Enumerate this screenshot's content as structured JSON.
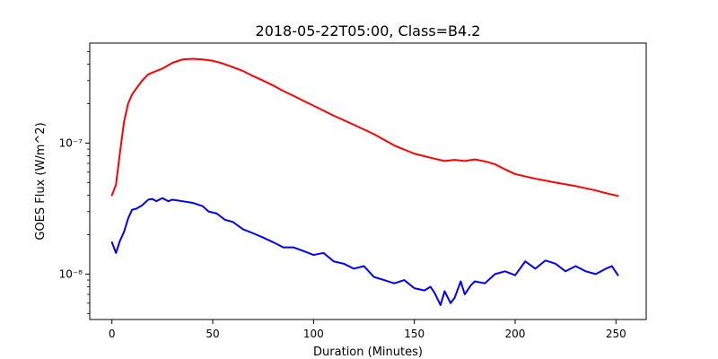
{
  "chart_data": {
    "type": "line",
    "title": "2018-05-22T05:00, Class=B4.2",
    "xlabel": "Duration (Minutes)",
    "ylabel": "GOES Flux (W/m^2)",
    "xlim": [
      -11,
      265
    ],
    "ylim": [
      4.5e-09,
      5.8e-07
    ],
    "yscale": "log",
    "grid": false,
    "xticks": [
      0,
      50,
      100,
      150,
      200,
      250
    ],
    "xtick_labels": [
      "0",
      "50",
      "100",
      "150",
      "200",
      "250"
    ],
    "yticks": [
      1e-08,
      1e-07
    ],
    "ytick_labels": [
      "10⁻⁸",
      "10⁻⁷"
    ],
    "series": [
      {
        "color": "#ff0000",
        "x": [
          0,
          2,
          4,
          6,
          8,
          10,
          12,
          15,
          18,
          20,
          25,
          30,
          35,
          40,
          45,
          50,
          55,
          60,
          65,
          70,
          75,
          80,
          85,
          90,
          95,
          100,
          110,
          120,
          130,
          140,
          150,
          160,
          165,
          170,
          175,
          180,
          185,
          190,
          195,
          200,
          210,
          220,
          230,
          240,
          245,
          251
        ],
        "y": [
          4e-08,
          4.8e-08,
          8.5e-08,
          1.45e-07,
          2e-07,
          2.35e-07,
          2.6e-07,
          3e-07,
          3.35e-07,
          3.45e-07,
          3.7e-07,
          4.1e-07,
          4.35e-07,
          4.4e-07,
          4.35e-07,
          4.25e-07,
          4.05e-07,
          3.8e-07,
          3.55e-07,
          3.25e-07,
          3e-07,
          2.75e-07,
          2.5e-07,
          2.3e-07,
          2.1e-07,
          1.93e-07,
          1.62e-07,
          1.38e-07,
          1.17e-07,
          9.6e-08,
          8.3e-08,
          7.6e-08,
          7.3e-08,
          7.45e-08,
          7.3e-08,
          7.5e-08,
          7.25e-08,
          6.9e-08,
          6.3e-08,
          5.8e-08,
          5.35e-08,
          5e-08,
          4.7e-08,
          4.35e-08,
          4.15e-08,
          3.95e-08
        ]
      },
      {
        "color": "#0000ff",
        "x": [
          0,
          2,
          4,
          6,
          8,
          10,
          12,
          15,
          18,
          20,
          22,
          25,
          28,
          30,
          35,
          40,
          45,
          48,
          52,
          56,
          60,
          65,
          70,
          75,
          80,
          85,
          90,
          95,
          100,
          105,
          110,
          115,
          120,
          125,
          130,
          135,
          140,
          145,
          150,
          155,
          158,
          160,
          163,
          165,
          168,
          170,
          173,
          175,
          178,
          180,
          185,
          190,
          195,
          200,
          205,
          210,
          215,
          220,
          225,
          230,
          235,
          240,
          245,
          248,
          251
        ],
        "y": [
          1.75e-08,
          1.45e-08,
          1.8e-08,
          2.1e-08,
          2.65e-08,
          3.1e-08,
          3.15e-08,
          3.35e-08,
          3.7e-08,
          3.75e-08,
          3.6e-08,
          3.8e-08,
          3.6e-08,
          3.7e-08,
          3.6e-08,
          3.5e-08,
          3.3e-08,
          3e-08,
          2.9e-08,
          2.6e-08,
          2.5e-08,
          2.2e-08,
          2.05e-08,
          1.9e-08,
          1.75e-08,
          1.6e-08,
          1.6e-08,
          1.5e-08,
          1.4e-08,
          1.45e-08,
          1.25e-08,
          1.2e-08,
          1.1e-08,
          1.15e-08,
          9.5e-09,
          9e-09,
          8.5e-09,
          9e-09,
          7.8e-09,
          7.5e-09,
          8e-09,
          7.2e-09,
          5.8e-09,
          7.4e-09,
          6e-09,
          6.6e-09,
          8.8e-09,
          7e-09,
          8.2e-09,
          8.8e-09,
          8.5e-09,
          1e-08,
          1.05e-08,
          9.8e-09,
          1.25e-08,
          1.1e-08,
          1.27e-08,
          1.2e-08,
          1.05e-08,
          1.15e-08,
          1.05e-08,
          1e-08,
          1.1e-08,
          1.15e-08,
          9.8e-09
        ]
      }
    ]
  }
}
